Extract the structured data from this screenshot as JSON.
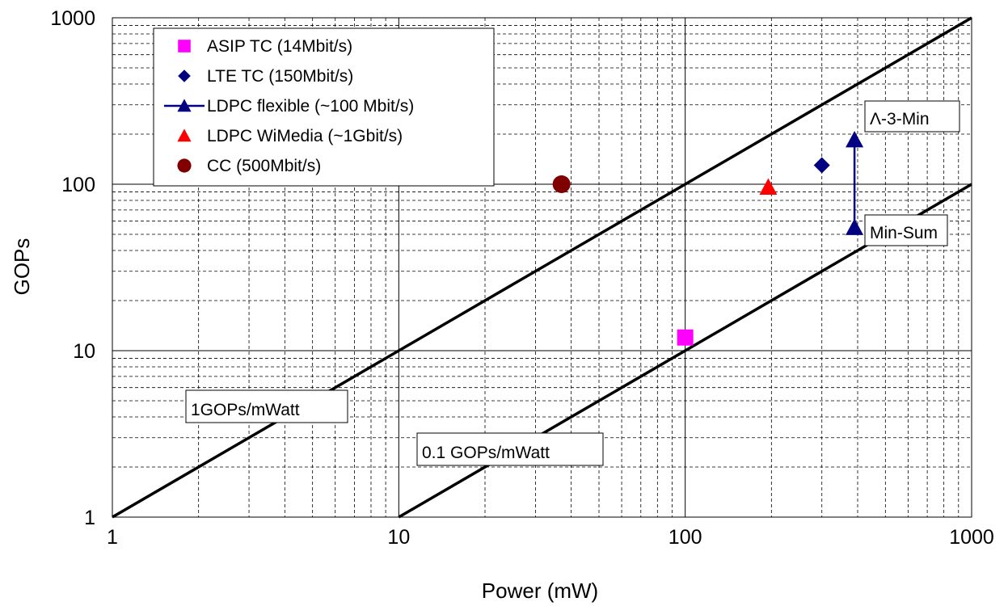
{
  "chart_data": {
    "type": "scatter",
    "title": "",
    "xlabel": "Power (mW)",
    "ylabel": "GOPs",
    "xscale": "log",
    "yscale": "log",
    "xlim": [
      1,
      1000
    ],
    "ylim": [
      1,
      1000
    ],
    "x_ticks": [
      "1",
      "10",
      "100",
      "1000"
    ],
    "y_ticks": [
      "1",
      "10",
      "100",
      "1000"
    ],
    "grid": true,
    "legend_position": "top-left",
    "series": [
      {
        "name": "ASIP TC (14Mbit/s)",
        "marker": "square",
        "color": "#ff00ff",
        "points": [
          {
            "x": 100,
            "y": 12
          }
        ]
      },
      {
        "name": "LTE TC (150Mbit/s)",
        "marker": "diamond",
        "color": "#000080",
        "points": [
          {
            "x": 300,
            "y": 130
          }
        ]
      },
      {
        "name": "LDPC flexible (~100 Mbit/s)",
        "marker": "triangle",
        "color": "#000080",
        "line": true,
        "points": [
          {
            "x": 390,
            "y": 55
          },
          {
            "x": 390,
            "y": 185
          }
        ]
      },
      {
        "name": "LDPC WiMedia (~1Gbit/s)",
        "marker": "triangle",
        "color": "#ff0000",
        "points": [
          {
            "x": 195,
            "y": 96
          }
        ]
      },
      {
        "name": "CC (500Mbit/s)",
        "marker": "circle",
        "color": "#800000",
        "points": [
          {
            "x": 37,
            "y": 100
          }
        ]
      }
    ],
    "reference_lines": [
      {
        "label": "1GOPs/mWatt",
        "points": [
          {
            "x": 1,
            "y": 1
          },
          {
            "x": 1000,
            "y": 1000
          }
        ]
      },
      {
        "label": "0.1 GOPs/mWatt",
        "points": [
          {
            "x": 10,
            "y": 1
          },
          {
            "x": 1000,
            "y": 100
          }
        ]
      }
    ],
    "annotations": [
      {
        "text": "Λ-3-Min",
        "x": 390,
        "y": 185
      },
      {
        "text": "Min-Sum",
        "x": 390,
        "y": 55
      }
    ]
  }
}
